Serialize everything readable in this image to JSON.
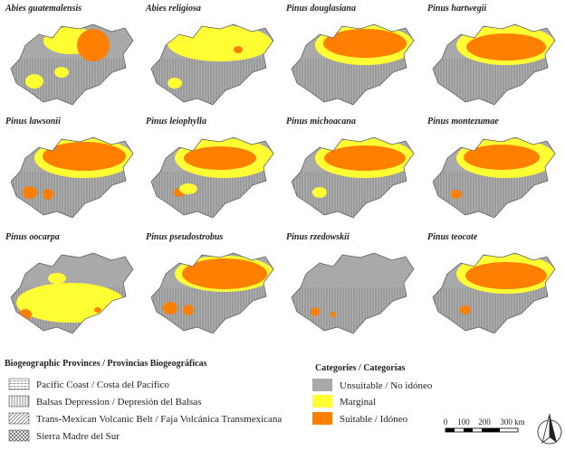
{
  "maps": [
    {
      "title": "Abies guatemalensis"
    },
    {
      "title": "Abies religiosa"
    },
    {
      "title": "Pinus douglasiana"
    },
    {
      "title": "Pinus hartwegii"
    },
    {
      "title": "Pinus lawsonii"
    },
    {
      "title": "Pinus leiophylla"
    },
    {
      "title": "Pinus michoacana"
    },
    {
      "title": "Pinus montezumae"
    },
    {
      "title": "Pinus oocarpa"
    },
    {
      "title": "Pinus pseudostrobus"
    },
    {
      "title": "Pinus rzedowskii"
    },
    {
      "title": "Pinus teocote"
    }
  ],
  "legend_provinces": {
    "title": "Biogeographic Provinces / Provincias Biogeográficas",
    "items": [
      "Pacific Coast / Costa del Pacífico",
      "Balsas Depression / Depresión del Balsas",
      "Trans-Mexican Volcanic Belt / Faja Volcánica Transmexicana",
      "Sierra Madre del Sur"
    ]
  },
  "legend_categories": {
    "title": "Categories / Categorías",
    "items": [
      "Unsuitable / No idóneo",
      "Marginal",
      "Suitable / Idóneo"
    ]
  },
  "scale_bar": {
    "labels": [
      "0",
      "100",
      "200",
      "300 km"
    ]
  }
}
